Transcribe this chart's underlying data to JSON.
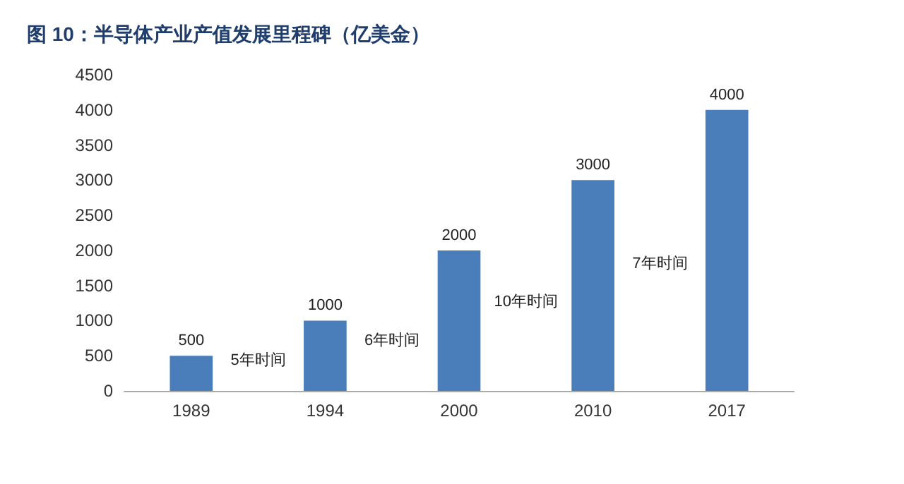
{
  "chart_data": {
    "type": "bar",
    "title": "图 10：半导体产业产值发展里程碑（亿美金）",
    "categories": [
      "1989",
      "1994",
      "2000",
      "2010",
      "2017"
    ],
    "values": [
      500,
      1000,
      2000,
      3000,
      4000
    ],
    "color": "#4a7ebb",
    "ylim": [
      0,
      4500
    ],
    "yticks": [
      0,
      500,
      1000,
      1500,
      2000,
      2500,
      3000,
      3500,
      4000,
      4500
    ],
    "grid": false,
    "data_labels": true,
    "annotations": [
      "5年时间",
      "6年时间",
      "10年时间",
      "7年时间"
    ]
  }
}
